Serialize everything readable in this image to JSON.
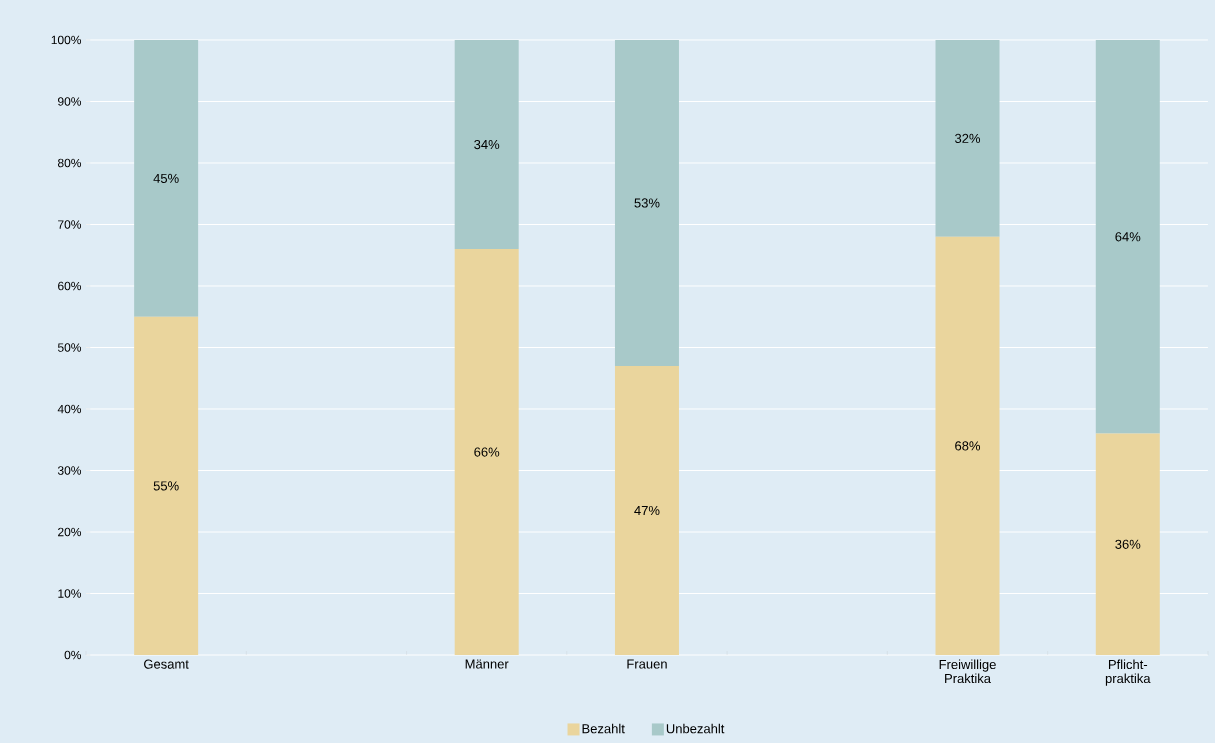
{
  "chart_data": {
    "type": "bar",
    "stacked": true,
    "categories": [
      "Gesamt",
      null,
      "Männer",
      "Frauen",
      null,
      "Freiwillige Praktika",
      "Pflicht-praktika"
    ],
    "series": [
      {
        "name": "Bezahlt",
        "color": "#ead59d",
        "values": [
          55,
          null,
          66,
          47,
          null,
          68,
          36
        ],
        "value_labels": [
          "55%",
          null,
          "66%",
          "47%",
          null,
          "68%",
          "36%"
        ]
      },
      {
        "name": "Unbezahlt",
        "color": "#a8c9c9",
        "values": [
          45,
          null,
          34,
          53,
          null,
          32,
          64
        ],
        "value_labels": [
          "45%",
          null,
          "34%",
          "53%",
          null,
          "32%",
          "64%"
        ]
      }
    ],
    "ylim": [
      0,
      100
    ],
    "yticks": [
      {
        "value": 0,
        "label": "0%"
      },
      {
        "value": 10,
        "label": "10%"
      },
      {
        "value": 20,
        "label": "20%"
      },
      {
        "value": 30,
        "label": "30%"
      },
      {
        "value": 40,
        "label": "40%"
      },
      {
        "value": 50,
        "label": "50%"
      },
      {
        "value": 60,
        "label": "60%"
      },
      {
        "value": 70,
        "label": "70%"
      },
      {
        "value": 80,
        "label": "80%"
      },
      {
        "value": 90,
        "label": "90%"
      },
      {
        "value": 100,
        "label": "100%"
      }
    ],
    "grid": "y",
    "legend": "bottom"
  }
}
